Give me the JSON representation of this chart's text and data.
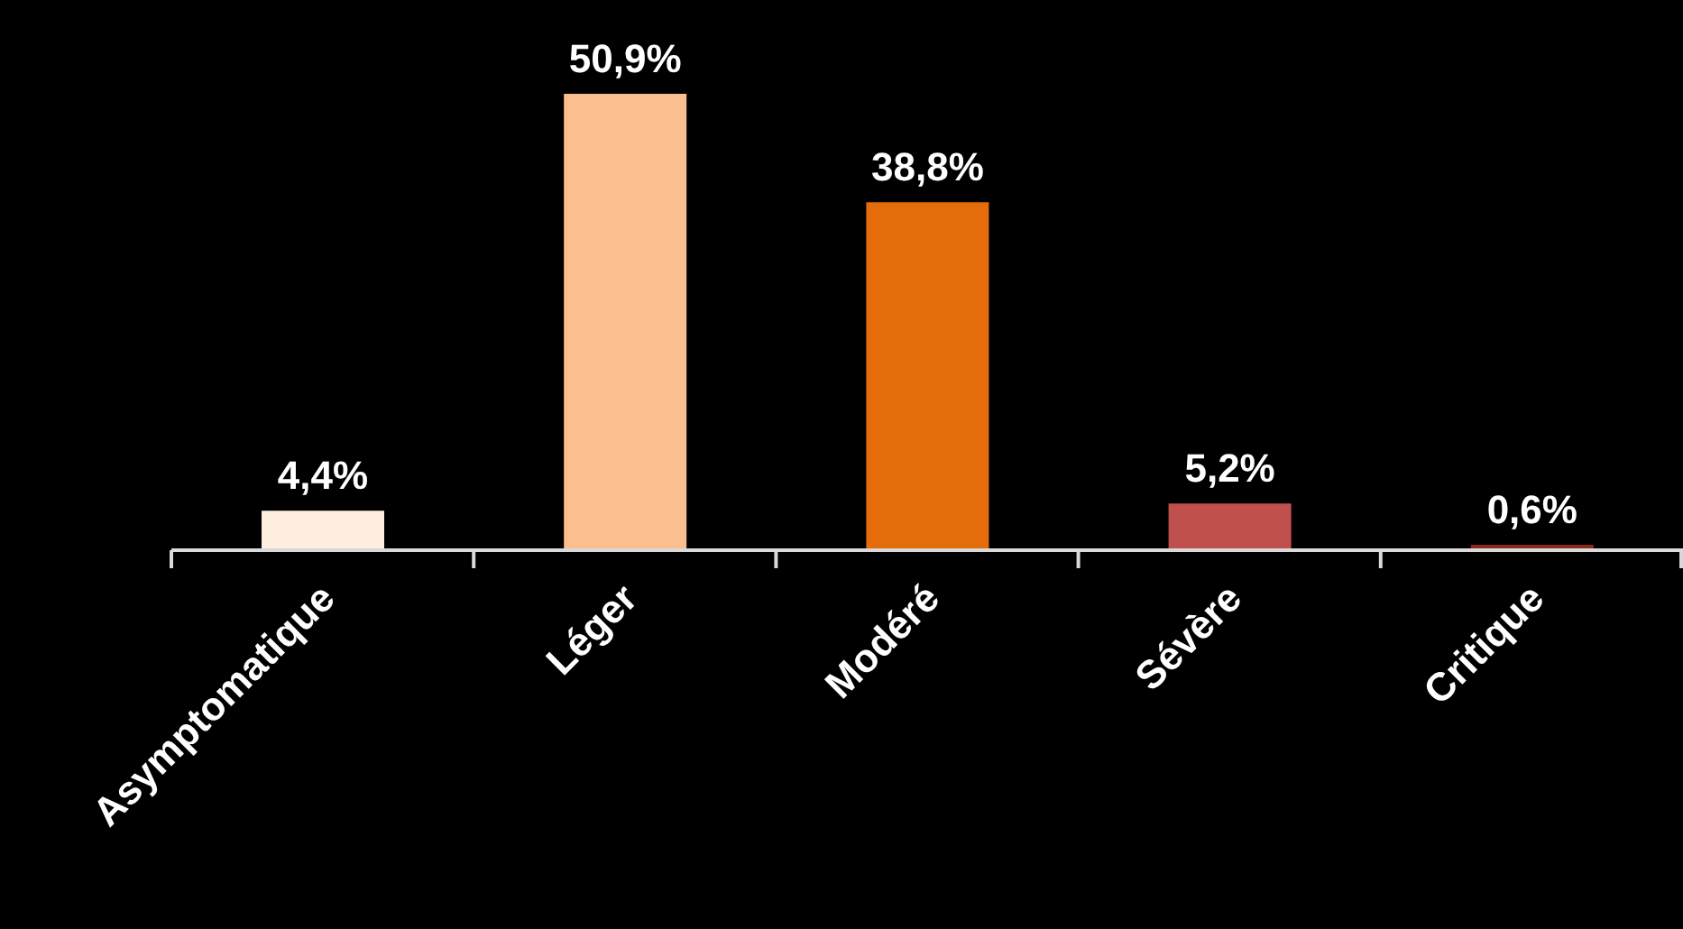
{
  "chart_data": {
    "type": "bar",
    "categories": [
      "Asymptomatique",
      "Léger",
      "Modéré",
      "Sévère",
      "Critique"
    ],
    "values": [
      4.4,
      50.9,
      38.8,
      5.2,
      0.6
    ],
    "colors": [
      "#fdeee0",
      "#fbbf8f",
      "#e46c0a",
      "#c0504d",
      "#8b2a1a"
    ],
    "value_labels": [
      "4,4%",
      "50,9%",
      "38,8%",
      "5,2%",
      "0,6%"
    ]
  }
}
